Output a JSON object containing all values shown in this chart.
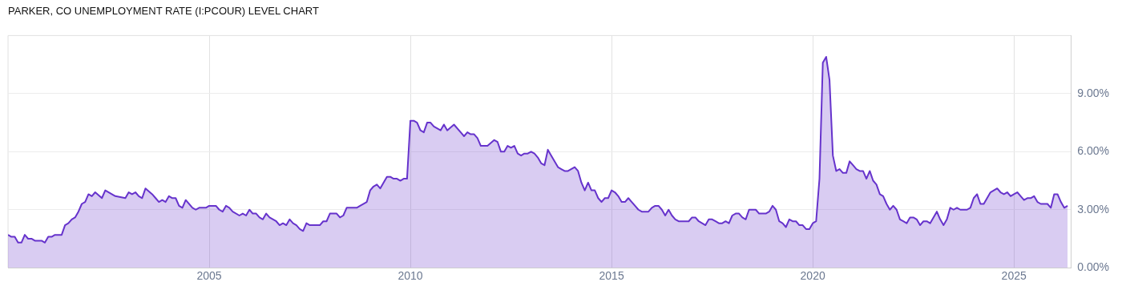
{
  "chart_data": {
    "type": "area",
    "title": "PARKER, CO UNEMPLOYMENT RATE (I:PCOUR) LEVEL CHART",
    "xlim": [
      "2000-01",
      "2026-06"
    ],
    "xticks": [
      "2005",
      "2010",
      "2015",
      "2020",
      "2025"
    ],
    "ylim": [
      0,
      12
    ],
    "yticks": [
      {
        "value": 0,
        "label": "0.00%"
      },
      {
        "value": 3,
        "label": "3.00%"
      },
      {
        "value": 6,
        "label": "6.00%"
      },
      {
        "value": 9,
        "label": "9.00%"
      }
    ],
    "grid": true,
    "legend": false,
    "marker": "none",
    "line_style": "solid",
    "series": [
      {
        "color": "#6633cc",
        "x": [
          "2000-01",
          "2000-02",
          "2000-03",
          "2000-04",
          "2000-05",
          "2000-06",
          "2000-07",
          "2000-08",
          "2000-09",
          "2000-11",
          "2000-12",
          "2001-01",
          "2001-02",
          "2001-03",
          "2001-05",
          "2001-06",
          "2001-07",
          "2001-08",
          "2001-09",
          "2001-10",
          "2001-11",
          "2001-12",
          "2002-01",
          "2002-02",
          "2002-03",
          "2002-05",
          "2002-06",
          "2002-09",
          "2002-12",
          "2003-01",
          "2003-02",
          "2003-03",
          "2003-04",
          "2003-05",
          "2003-06",
          "2003-08",
          "2003-09",
          "2003-10",
          "2003-11",
          "2003-12",
          "2004-01",
          "2004-02",
          "2004-03",
          "2004-04",
          "2004-05",
          "2004-06",
          "2004-08",
          "2004-09",
          "2004-10",
          "2004-12",
          "2005-01",
          "2005-03",
          "2005-04",
          "2005-05",
          "2005-06",
          "2005-07",
          "2005-08",
          "2005-10",
          "2005-11",
          "2005-12",
          "2006-01",
          "2006-02",
          "2006-03",
          "2006-04",
          "2006-05",
          "2006-06",
          "2006-07",
          "2006-09",
          "2006-10",
          "2006-11",
          "2006-12",
          "2007-01",
          "2007-02",
          "2007-03",
          "2007-04",
          "2007-05",
          "2007-06",
          "2007-07",
          "2007-10",
          "2007-11",
          "2007-12",
          "2008-01",
          "2008-03",
          "2008-04",
          "2008-05",
          "2008-06",
          "2008-09",
          "2008-10",
          "2008-12",
          "2009-01",
          "2009-02",
          "2009-03",
          "2009-04",
          "2009-05",
          "2009-06",
          "2009-07",
          "2009-08",
          "2009-09",
          "2009-10",
          "2009-11",
          "2009-12",
          "2010-01",
          "2010-02",
          "2010-03",
          "2010-04",
          "2010-05",
          "2010-06",
          "2010-07",
          "2010-08",
          "2010-10",
          "2010-11",
          "2010-12",
          "2011-02",
          "2011-04",
          "2011-05",
          "2011-06",
          "2011-07",
          "2011-08",
          "2011-09",
          "2011-10",
          "2011-12",
          "2012-02",
          "2012-03",
          "2012-04",
          "2012-05",
          "2012-06",
          "2012-07",
          "2012-08",
          "2012-09",
          "2012-10",
          "2012-11",
          "2012-12",
          "2013-01",
          "2013-02",
          "2013-03",
          "2013-04",
          "2013-05",
          "2013-06",
          "2013-07",
          "2013-09",
          "2013-10",
          "2013-11",
          "2013-12",
          "2014-02",
          "2014-03",
          "2014-04",
          "2014-05",
          "2014-06",
          "2014-07",
          "2014-08",
          "2014-09",
          "2014-10",
          "2014-11",
          "2014-12",
          "2015-01",
          "2015-02",
          "2015-03",
          "2015-04",
          "2015-05",
          "2015-06",
          "2015-07",
          "2015-08",
          "2015-09",
          "2015-10",
          "2015-12",
          "2016-01",
          "2016-02",
          "2016-03",
          "2016-04",
          "2016-05",
          "2016-06",
          "2016-07",
          "2016-08",
          "2016-09",
          "2016-12",
          "2017-01",
          "2017-02",
          "2017-03",
          "2017-04",
          "2017-05",
          "2017-06",
          "2017-07",
          "2017-08",
          "2017-09",
          "2017-10",
          "2017-11",
          "2017-12",
          "2018-01",
          "2018-02",
          "2018-03",
          "2018-04",
          "2018-05",
          "2018-06",
          "2018-08",
          "2018-09",
          "2018-11",
          "2018-12",
          "2019-01",
          "2019-02",
          "2019-03",
          "2019-04",
          "2019-05",
          "2019-06",
          "2019-07",
          "2019-08",
          "2019-09",
          "2019-10",
          "2019-11",
          "2019-12",
          "2020-01",
          "2020-02",
          "2020-03",
          "2020-04",
          "2020-05",
          "2020-06",
          "2020-07",
          "2020-08",
          "2020-09",
          "2020-10",
          "2020-11",
          "2020-12",
          "2021-01",
          "2021-02",
          "2021-03",
          "2021-04",
          "2021-05",
          "2021-06",
          "2021-07",
          "2021-08",
          "2021-09",
          "2021-10",
          "2021-11",
          "2021-12",
          "2022-01",
          "2022-02",
          "2022-03",
          "2022-04",
          "2022-05",
          "2022-06",
          "2022-07",
          "2022-08",
          "2022-09",
          "2022-10",
          "2022-11",
          "2022-12",
          "2023-02",
          "2023-03",
          "2023-04",
          "2023-05",
          "2023-06",
          "2023-07",
          "2023-08",
          "2023-09",
          "2023-11",
          "2023-12",
          "2024-01",
          "2024-02",
          "2024-03",
          "2024-04",
          "2024-05",
          "2024-06",
          "2024-07",
          "2024-08",
          "2024-09",
          "2024-10",
          "2024-11",
          "2024-12",
          "2025-01",
          "2025-02",
          "2025-03",
          "2025-04",
          "2025-05",
          "2025-06",
          "2025-07",
          "2025-08",
          "2025-09",
          "2025-10",
          "2025-11",
          "2025-12",
          "2026-01",
          "2026-02",
          "2026-03",
          "2026-04",
          "2026-05"
        ],
        "values": [
          1.7,
          1.6,
          1.6,
          1.3,
          1.3,
          1.7,
          1.5,
          1.5,
          1.4,
          1.4,
          1.3,
          1.6,
          1.6,
          1.7,
          1.7,
          2.2,
          2.3,
          2.5,
          2.6,
          2.9,
          3.3,
          3.4,
          3.8,
          3.7,
          3.9,
          3.6,
          4.0,
          3.7,
          3.6,
          3.9,
          3.8,
          3.9,
          3.7,
          3.6,
          4.1,
          3.8,
          3.6,
          3.4,
          3.5,
          3.4,
          3.7,
          3.6,
          3.6,
          3.2,
          3.1,
          3.5,
          3.1,
          3.0,
          3.1,
          3.1,
          3.2,
          3.2,
          3.0,
          2.9,
          3.2,
          3.1,
          2.9,
          2.7,
          2.8,
          2.7,
          3.0,
          2.8,
          2.8,
          2.6,
          2.5,
          2.8,
          2.6,
          2.4,
          2.2,
          2.3,
          2.2,
          2.5,
          2.3,
          2.2,
          2.0,
          1.9,
          2.3,
          2.2,
          2.2,
          2.4,
          2.4,
          2.8,
          2.8,
          2.6,
          2.7,
          3.1,
          3.1,
          3.2,
          3.4,
          4.0,
          4.2,
          4.3,
          4.1,
          4.4,
          4.7,
          4.7,
          4.6,
          4.6,
          4.5,
          4.6,
          4.6,
          7.6,
          7.6,
          7.5,
          7.1,
          7.0,
          7.5,
          7.5,
          7.3,
          7.1,
          7.4,
          7.1,
          7.4,
          7.0,
          6.8,
          7.0,
          6.9,
          6.9,
          6.7,
          6.3,
          6.3,
          6.6,
          6.5,
          6.0,
          6.0,
          6.3,
          6.2,
          6.3,
          5.9,
          5.8,
          5.9,
          5.9,
          6.0,
          5.9,
          5.7,
          5.4,
          5.3,
          6.1,
          5.8,
          5.2,
          5.1,
          5.0,
          5.0,
          5.2,
          5.0,
          4.4,
          4.0,
          4.4,
          4.0,
          4.0,
          3.6,
          3.4,
          3.6,
          3.6,
          4.0,
          3.9,
          3.7,
          3.4,
          3.4,
          3.6,
          3.4,
          3.2,
          3.0,
          2.9,
          2.9,
          3.1,
          3.2,
          3.2,
          3.0,
          2.7,
          3.0,
          2.7,
          2.5,
          2.4,
          2.4,
          2.6,
          2.6,
          2.4,
          2.3,
          2.2,
          2.5,
          2.5,
          2.4,
          2.3,
          2.3,
          2.4,
          2.3,
          2.7,
          2.8,
          2.8,
          2.6,
          2.5,
          3.0,
          3.0,
          2.8,
          2.8,
          2.9,
          3.2,
          3.0,
          2.4,
          2.3,
          2.1,
          2.5,
          2.4,
          2.4,
          2.2,
          2.2,
          2.0,
          2.0,
          2.3,
          2.4,
          4.6,
          10.6,
          10.9,
          9.7,
          5.8,
          5.0,
          5.1,
          4.9,
          4.9,
          5.5,
          5.3,
          5.1,
          5.0,
          5.0,
          4.6,
          5.0,
          4.5,
          4.3,
          3.8,
          3.7,
          3.3,
          3.0,
          3.2,
          3.0,
          2.5,
          2.4,
          2.3,
          2.6,
          2.6,
          2.5,
          2.2,
          2.4,
          2.4,
          2.3,
          2.9,
          2.5,
          2.2,
          2.5,
          3.1,
          3.0,
          3.1,
          3.0,
          3.0,
          3.1,
          3.6,
          3.8,
          3.3,
          3.3,
          3.6,
          3.9,
          4.0,
          4.1,
          3.9,
          3.8,
          3.9,
          3.7,
          3.8,
          3.9,
          3.7,
          3.5,
          3.6,
          3.6,
          3.7,
          3.4,
          3.3,
          3.3,
          3.3,
          3.1,
          3.8,
          3.8,
          3.4,
          3.1,
          3.2
        ]
      }
    ]
  }
}
